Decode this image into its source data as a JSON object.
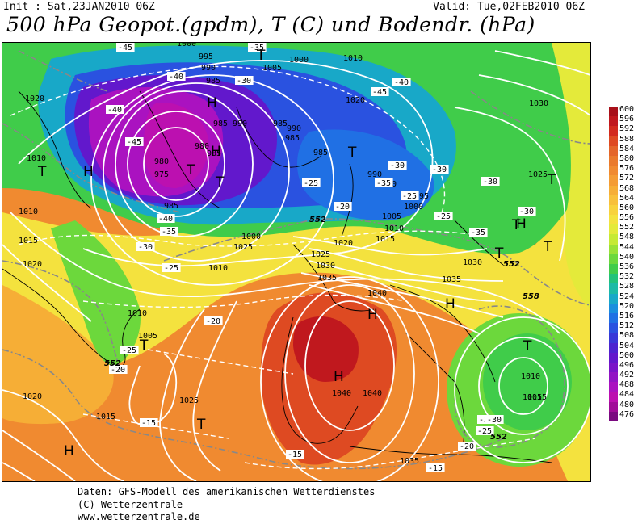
{
  "header": {
    "init": "Init : Sat,23JAN2010 06Z",
    "valid": "Valid: Tue,02FEB2010 06Z",
    "title": "500 hPa Geopot.(gpdm), T (C) und Bodendr. (hPa)"
  },
  "footer": {
    "line1": "Daten: GFS-Modell des amerikanischen Wetterdienstes",
    "line2": "(C) Wetterzentrale",
    "line3": "www.wetterzentrale.de"
  },
  "legend": {
    "values": [
      "600",
      "596",
      "592",
      "588",
      "584",
      "580",
      "576",
      "572",
      "568",
      "564",
      "560",
      "556",
      "552",
      "548",
      "544",
      "540",
      "536",
      "532",
      "528",
      "524",
      "520",
      "516",
      "512",
      "508",
      "504",
      "500",
      "496",
      "492",
      "488",
      "484",
      "480",
      "476"
    ],
    "colors": [
      "#a8101a",
      "#c0181e",
      "#d22a1e",
      "#de4a22",
      "#e4662a",
      "#ea7a2c",
      "#f08a30",
      "#f49c34",
      "#f6ae36",
      "#f8c03a",
      "#f8d23c",
      "#f4e23e",
      "#e4ea3a",
      "#c6ea34",
      "#9ae236",
      "#6cd83c",
      "#40cc4a",
      "#22c27a",
      "#1cbaa6",
      "#18a8c8",
      "#1a8ede",
      "#2070e4",
      "#2a52e0",
      "#3838d8",
      "#4c24d0",
      "#6218cc",
      "#7a14c8",
      "#9214c4",
      "#aa12c0",
      "#bc10b0",
      "#a00c98",
      "#7a0a80"
    ]
  },
  "map": {
    "pressure_labels": [
      {
        "t": "1000"
      },
      {
        "t": "995"
      },
      {
        "t": "990"
      },
      {
        "t": "985"
      },
      {
        "t": "1005"
      },
      {
        "t": "1000"
      },
      {
        "t": "1010"
      },
      {
        "t": "1020"
      },
      {
        "t": "985"
      },
      {
        "t": "980"
      },
      {
        "t": "975"
      },
      {
        "t": "985"
      },
      {
        "t": "990"
      },
      {
        "t": "985"
      },
      {
        "t": "985"
      },
      {
        "t": "990"
      },
      {
        "t": "1010"
      },
      {
        "t": "1010"
      },
      {
        "t": "1015"
      },
      {
        "t": "1020"
      },
      {
        "t": "985"
      },
      {
        "t": "980"
      },
      {
        "t": "985"
      },
      {
        "t": "1000"
      },
      {
        "t": "1025"
      },
      {
        "t": "1010"
      },
      {
        "t": "990"
      },
      {
        "t": "990"
      },
      {
        "t": "995"
      },
      {
        "t": "1000"
      },
      {
        "t": "1005"
      },
      {
        "t": "1010"
      },
      {
        "t": "1015"
      },
      {
        "t": "1025"
      },
      {
        "t": "1030"
      },
      {
        "t": "1020"
      },
      {
        "t": "1020"
      },
      {
        "t": "1025"
      },
      {
        "t": "1030"
      },
      {
        "t": "1035"
      },
      {
        "t": "1040"
      },
      {
        "t": "1030"
      },
      {
        "t": "1035"
      },
      {
        "t": "1010"
      },
      {
        "t": "1005"
      },
      {
        "t": "1025"
      },
      {
        "t": "1020"
      },
      {
        "t": "1015"
      },
      {
        "t": "1015"
      },
      {
        "t": "1040"
      },
      {
        "t": "1040"
      },
      {
        "t": "1035"
      },
      {
        "t": "1010"
      },
      {
        "t": "1015"
      }
    ],
    "temp_labels": [
      {
        "t": "-45"
      },
      {
        "t": "-35"
      },
      {
        "t": "-40"
      },
      {
        "t": "-30"
      },
      {
        "t": "-40"
      },
      {
        "t": "-45"
      },
      {
        "t": "-40"
      },
      {
        "t": "-45"
      },
      {
        "t": "-30"
      },
      {
        "t": "-30"
      },
      {
        "t": "-25"
      },
      {
        "t": "-35"
      },
      {
        "t": "-30"
      },
      {
        "t": "-25"
      },
      {
        "t": "-20"
      },
      {
        "t": "-40"
      },
      {
        "t": "-35"
      },
      {
        "t": "-30"
      },
      {
        "t": "-25"
      },
      {
        "t": "-25"
      },
      {
        "t": "-35"
      },
      {
        "t": "-30"
      },
      {
        "t": "-20"
      },
      {
        "t": "-25"
      },
      {
        "t": "-20"
      },
      {
        "t": "-15"
      },
      {
        "t": "-15"
      },
      {
        "t": "-15"
      },
      {
        "t": "-20"
      },
      {
        "t": "-25"
      },
      {
        "t": "-30"
      },
      {
        "t": "-30"
      }
    ],
    "gh_labels": [
      {
        "t": "552"
      },
      {
        "t": "552"
      },
      {
        "t": "558"
      },
      {
        "t": "552"
      },
      {
        "t": "552"
      }
    ],
    "systems": [
      {
        "t": "H"
      },
      {
        "t": "H"
      },
      {
        "t": "H"
      },
      {
        "t": "T"
      },
      {
        "t": "T"
      },
      {
        "t": "T"
      },
      {
        "t": "T"
      },
      {
        "t": "T"
      },
      {
        "t": "T"
      },
      {
        "t": "H"
      },
      {
        "t": "H"
      },
      {
        "t": "T"
      },
      {
        "t": "H"
      },
      {
        "t": "H"
      },
      {
        "t": "T"
      },
      {
        "t": "T"
      },
      {
        "t": "T"
      },
      {
        "t": "H"
      },
      {
        "t": "T"
      },
      {
        "t": "T"
      }
    ]
  }
}
